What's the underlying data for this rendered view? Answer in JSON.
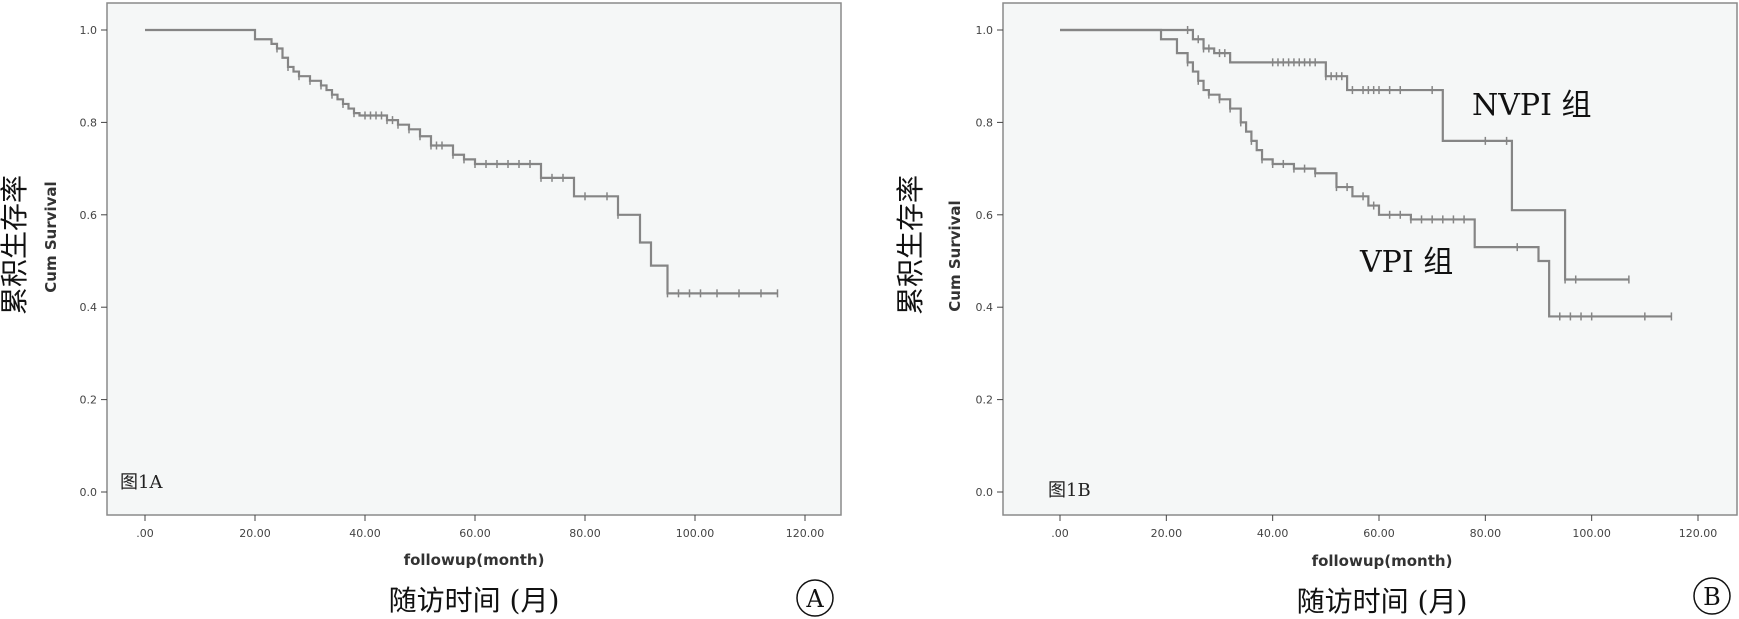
{
  "chart_data": [
    {
      "type": "line",
      "panel_label": "A",
      "inner_label": "图1A",
      "xlabel": "followup(month)",
      "xlabel_cn": "随访时间 (月)",
      "ylabel": "Cum Survival",
      "ylabel_cn": "累积生存率",
      "xlim": [
        0,
        120
      ],
      "ylim": [
        0,
        1
      ],
      "x_ticks": [
        ".00",
        "20.00",
        "40.00",
        "60.00",
        "80.00",
        "100.00",
        "120.00"
      ],
      "y_ticks": [
        "0.0",
        "0.2",
        "0.4",
        "0.6",
        "0.8",
        "1.0"
      ],
      "series": [
        {
          "x": [
            0,
            18,
            20,
            23,
            24,
            25,
            26,
            27,
            28,
            30,
            32,
            33,
            34,
            35,
            36,
            37,
            38,
            39,
            44,
            46,
            48,
            50,
            52,
            56,
            58,
            60,
            72,
            78,
            83,
            86,
            88,
            90,
            92,
            95,
            115
          ],
          "y": [
            1.0,
            1.0,
            0.98,
            0.97,
            0.96,
            0.94,
            0.92,
            0.91,
            0.9,
            0.89,
            0.88,
            0.87,
            0.86,
            0.85,
            0.84,
            0.83,
            0.82,
            0.815,
            0.805,
            0.795,
            0.785,
            0.77,
            0.75,
            0.73,
            0.72,
            0.71,
            0.68,
            0.64,
            0.64,
            0.6,
            0.6,
            0.54,
            0.49,
            0.43,
            0.43
          ],
          "censor_x": [
            24,
            26,
            28,
            30,
            32,
            34,
            36,
            38,
            40,
            41,
            42,
            43,
            44,
            45,
            46,
            48,
            50,
            52,
            53,
            54,
            56,
            58,
            60,
            62,
            64,
            66,
            68,
            70,
            72,
            74,
            76,
            80,
            84,
            86,
            95,
            97,
            99,
            101,
            104,
            108,
            112,
            115
          ]
        }
      ]
    },
    {
      "type": "line",
      "panel_label": "B",
      "inner_label": "图1B",
      "xlabel": "followup(month)",
      "xlabel_cn": "随访时间 (月)",
      "ylabel": "Cum Survival",
      "ylabel_cn": "累积生存率",
      "xlim": [
        0,
        120
      ],
      "ylim": [
        0,
        1
      ],
      "x_ticks": [
        ".00",
        "20.00",
        "40.00",
        "60.00",
        "80.00",
        "100.00",
        "120.00"
      ],
      "y_ticks": [
        "0.0",
        "0.2",
        "0.4",
        "0.6",
        "0.8",
        "1.0"
      ],
      "series": [
        {
          "name": "NVPI 组",
          "x": [
            0,
            24,
            25,
            27,
            29,
            32,
            36,
            40,
            50,
            54,
            58,
            72,
            78,
            85,
            95,
            107
          ],
          "y": [
            1.0,
            1.0,
            0.98,
            0.96,
            0.95,
            0.93,
            0.93,
            0.93,
            0.9,
            0.87,
            0.87,
            0.76,
            0.76,
            0.61,
            0.46,
            0.46
          ],
          "censor_x": [
            24,
            26,
            27,
            28,
            30,
            31,
            40,
            41,
            42,
            43,
            44,
            45,
            46,
            47,
            48,
            50,
            51,
            52,
            53,
            55,
            57,
            58,
            59,
            60,
            62,
            64,
            70,
            80,
            84,
            95,
            97,
            107
          ]
        },
        {
          "name": "VPI 组",
          "x": [
            0,
            17,
            19,
            22,
            24,
            25,
            26,
            27,
            28,
            30,
            32,
            34,
            35,
            36,
            37,
            38,
            40,
            44,
            48,
            52,
            55,
            58,
            60,
            66,
            70,
            72,
            78,
            86,
            90,
            92,
            115
          ],
          "y": [
            1.0,
            1.0,
            0.98,
            0.95,
            0.93,
            0.91,
            0.89,
            0.87,
            0.86,
            0.85,
            0.83,
            0.8,
            0.78,
            0.76,
            0.74,
            0.72,
            0.71,
            0.7,
            0.69,
            0.66,
            0.64,
            0.62,
            0.6,
            0.59,
            0.59,
            0.59,
            0.53,
            0.53,
            0.5,
            0.38,
            0.38
          ],
          "censor_x": [
            24,
            26,
            28,
            30,
            32,
            34,
            36,
            38,
            40,
            42,
            44,
            46,
            48,
            52,
            54,
            57,
            59,
            62,
            64,
            66,
            68,
            70,
            72,
            74,
            76,
            86,
            94,
            96,
            98,
            100,
            110,
            115
          ]
        }
      ]
    }
  ]
}
